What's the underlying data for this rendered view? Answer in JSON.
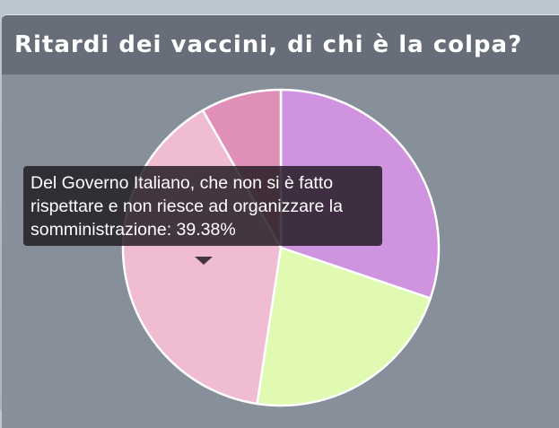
{
  "chart_data": {
    "type": "pie",
    "title": "Ritardi dei vaccini, di chi è la colpa?",
    "slices": [
      {
        "value": 30.2,
        "color": "#d093e0"
      },
      {
        "value": 22.2,
        "color": "#e1fab2"
      },
      {
        "value": 39.38,
        "color": "#efbcd2",
        "label": "Del Governo Italiano, che non si è fatto rispettare e non riesce ad organizzare la somministrazione"
      },
      {
        "value": 8.22,
        "color": "#e08fb8"
      }
    ],
    "tooltip": {
      "text": "Del Governo Italiano, che non si è fatto rispettare e non riesce ad organizzare la somministrazione: 39.38%"
    }
  }
}
